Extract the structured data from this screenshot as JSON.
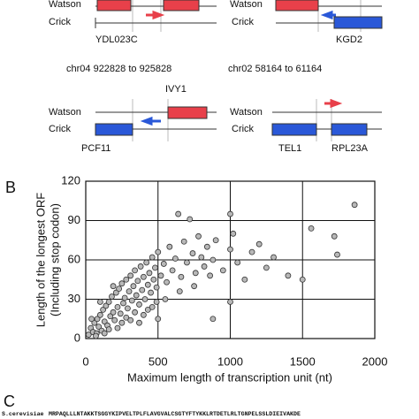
{
  "figure": {
    "panels": [
      {
        "watson": "Watson",
        "crick": "Crick",
        "genes": [
          "YDL023C"
        ]
      },
      {
        "watson": "Watson",
        "crick": "Crick",
        "genes": [
          "KGD2"
        ]
      },
      {
        "region": "chr04 922828 to 925828",
        "watson": "Watson",
        "crick": "Crick",
        "genes": [
          "IVY1",
          "PCF11"
        ]
      },
      {
        "region": "chr02 58164 to 61164",
        "watson": "Watson",
        "crick": "Crick",
        "genes": [
          "TEL1",
          "RPL23A"
        ]
      }
    ],
    "label_b": "B",
    "label_c": "C",
    "panel_c": {
      "species": "S.cerevisiae",
      "sequence": "MRPAQLLLNTAKKTSGGYKIPVELTPLFLAVGVALCSGTYFTYKKLRTDETLRLTGNPELSSLDIEIVAKDE"
    }
  },
  "chart_data": {
    "type": "scatter",
    "x_label": "Maximum length of transcription unit (nt)",
    "y_label": [
      "Length of the longest ORF",
      "(Including stop codon)"
    ],
    "xlim": [
      0,
      2000
    ],
    "ylim": [
      0,
      120
    ],
    "xticks": [
      0,
      500,
      1000,
      1500,
      2000
    ],
    "yticks": [
      0,
      30,
      60,
      90,
      120
    ],
    "grid": true,
    "color": "#b8b8b8",
    "x": [
      20,
      35,
      50,
      60,
      75,
      80,
      90,
      100,
      110,
      120,
      130,
      140,
      150,
      160,
      170,
      180,
      190,
      200,
      210,
      220,
      230,
      240,
      250,
      260,
      270,
      280,
      290,
      300,
      310,
      320,
      330,
      340,
      350,
      360,
      370,
      380,
      390,
      400,
      410,
      420,
      430,
      440,
      450,
      460,
      470,
      480,
      490,
      500,
      520,
      540,
      560,
      580,
      600,
      620,
      640,
      660,
      680,
      700,
      720,
      740,
      760,
      780,
      800,
      820,
      840,
      860,
      880,
      900,
      950,
      1000,
      1020,
      1050,
      1100,
      1150,
      1200,
      1250,
      1300,
      1400,
      1500,
      1560,
      1720,
      1740,
      1860,
      40,
      70,
      100,
      130,
      160,
      190,
      220,
      250,
      280,
      310,
      340,
      370,
      400,
      430,
      460,
      490,
      550,
      650,
      750,
      1000,
      1000,
      880,
      500
    ],
    "y": [
      3,
      8,
      5,
      12,
      4,
      15,
      9,
      18,
      6,
      22,
      13,
      25,
      10,
      28,
      17,
      32,
      20,
      14,
      35,
      24,
      38,
      19,
      42,
      27,
      31,
      45,
      23,
      36,
      48,
      29,
      40,
      52,
      33,
      44,
      26,
      55,
      37,
      47,
      30,
      58,
      41,
      50,
      35,
      62,
      45,
      54,
      39,
      66,
      48,
      57,
      43,
      70,
      52,
      61,
      95,
      47,
      74,
      58,
      91,
      65,
      50,
      78,
      62,
      55,
      70,
      48,
      60,
      75,
      52,
      68,
      80,
      58,
      45,
      66,
      72,
      54,
      62,
      48,
      45,
      84,
      78,
      64,
      102,
      15,
      2,
      28,
      4,
      7,
      40,
      8,
      12,
      16,
      14,
      20,
      12,
      18,
      22,
      24,
      28,
      30,
      36,
      40,
      95,
      28,
      15,
      15
    ]
  }
}
